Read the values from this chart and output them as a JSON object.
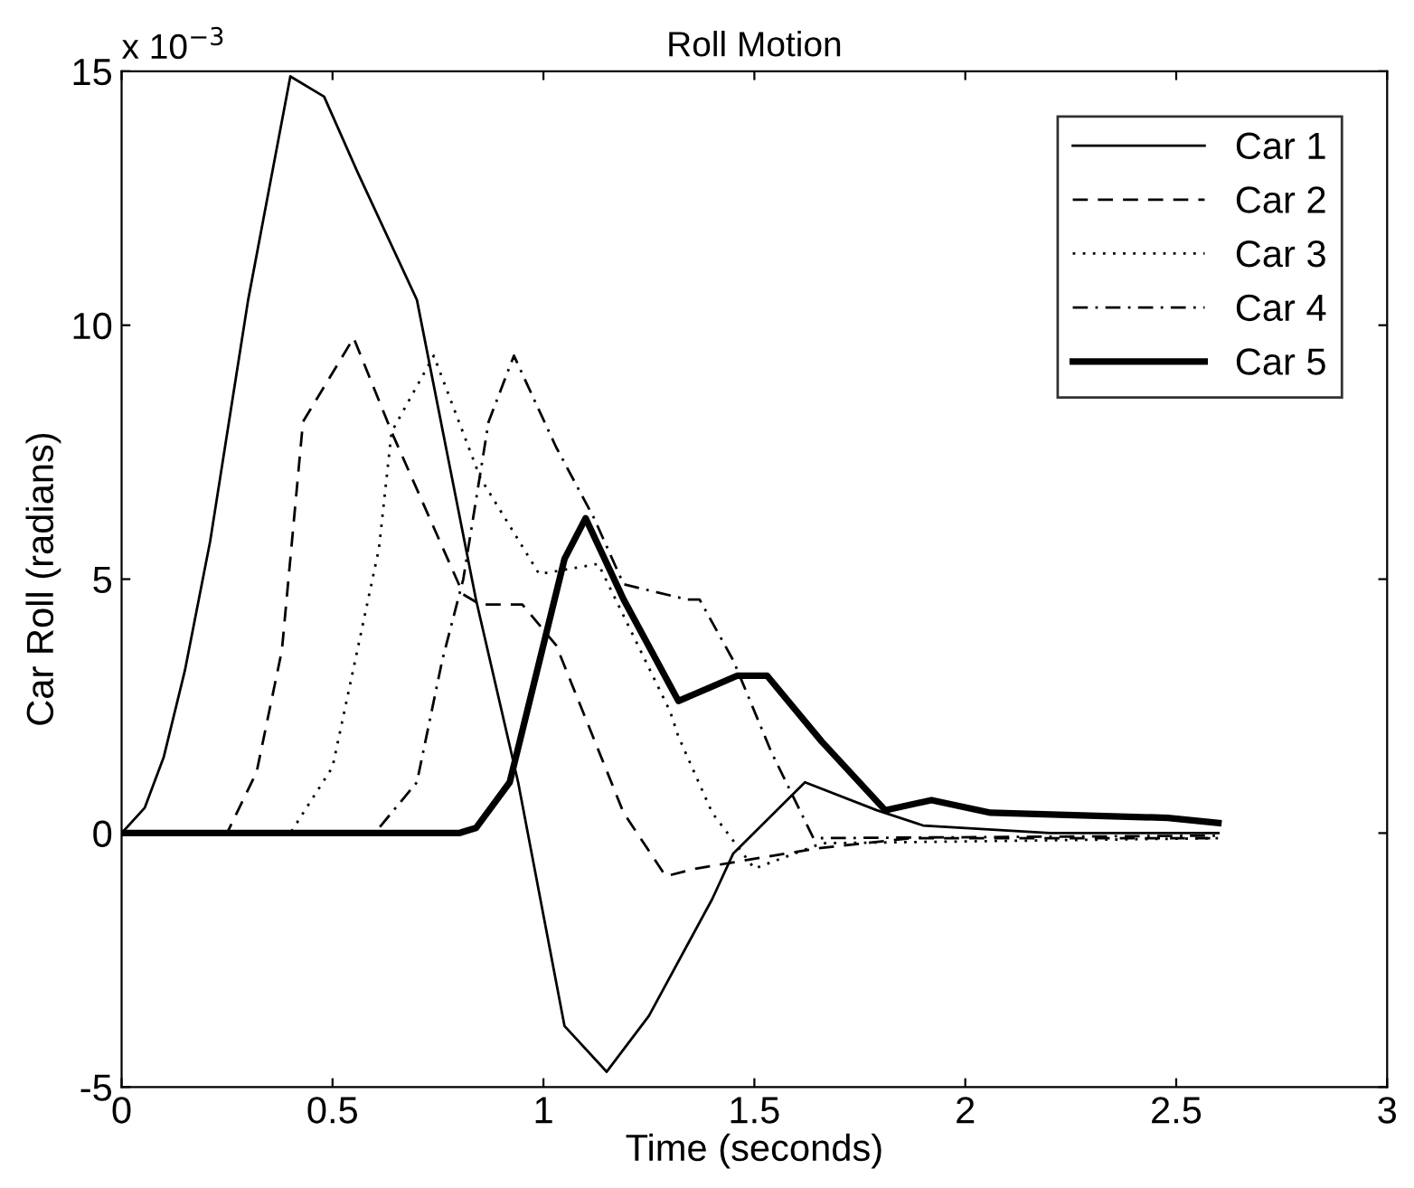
{
  "chart_data": {
    "type": "line",
    "title": "Roll Motion",
    "xlabel": "Time (seconds)",
    "ylabel": "Car Roll (radians)",
    "annotations": [
      "x 10$^{−3}$"
    ],
    "xlim": [
      0,
      3
    ],
    "xticks": [
      0,
      0.5,
      1,
      1.5,
      2,
      2.5,
      3
    ],
    "ylim": [
      -5,
      15
    ],
    "yticks": [
      -5,
      0,
      5,
      10,
      15
    ],
    "grid": false,
    "legend": "top right",
    "marker": "none",
    "series": [
      {
        "name": "Car 1",
        "color": "#000000",
        "line_style": "solid",
        "x": [
          0,
          0.055,
          0.1,
          0.15,
          0.21,
          0.3,
          0.4,
          0.48,
          0.56,
          0.7,
          0.84,
          0.94,
          1.05,
          1.15,
          1.25,
          1.4,
          1.45,
          1.62,
          1.79,
          1.9,
          2.2,
          2.6
        ],
        "values": [
          0,
          0.5,
          1.5,
          3.2,
          5.75,
          10.5,
          14.9,
          14.5,
          13.0,
          10.5,
          4.6,
          1.0,
          -3.8,
          -4.7,
          -3.6,
          -1.3,
          -0.4,
          1.0,
          0.45,
          0.15,
          0.0,
          0.0
        ]
      },
      {
        "name": "Car 2",
        "color": "#000000",
        "line_style": "dashed",
        "x": [
          0,
          0.25,
          0.32,
          0.38,
          0.43,
          0.55,
          0.64,
          0.81,
          0.85,
          0.95,
          1.03,
          1.19,
          1.29,
          1.36,
          1.65,
          1.87,
          2.6
        ],
        "values": [
          0,
          0,
          1.2,
          3.6,
          8.1,
          9.75,
          7.9,
          4.7,
          4.5,
          4.5,
          3.7,
          0.4,
          -0.85,
          -0.7,
          -0.3,
          -0.1,
          -0.1
        ]
      },
      {
        "name": "Car 3",
        "color": "#000000",
        "line_style": "dotted",
        "x": [
          0,
          0.4,
          0.5,
          0.61,
          0.64,
          0.74,
          0.85,
          0.99,
          1.13,
          1.3,
          1.32,
          1.4,
          1.5,
          1.66,
          2.6
        ],
        "values": [
          0,
          0,
          1.3,
          5.6,
          7.9,
          9.4,
          7.0,
          5.1,
          5.3,
          2.4,
          1.9,
          0.4,
          -0.7,
          -0.2,
          -0.1
        ]
      },
      {
        "name": "Car 4",
        "color": "#000000",
        "line_style": "dashdot",
        "x": [
          0,
          0.6,
          0.7,
          0.76,
          0.81,
          0.87,
          0.93,
          1.03,
          1.12,
          1.19,
          1.34,
          1.37,
          1.45,
          1.54,
          1.64,
          2.6
        ],
        "values": [
          0,
          0,
          1.0,
          3.4,
          5.0,
          8.1,
          9.4,
          7.6,
          6.2,
          4.9,
          4.6,
          4.6,
          3.4,
          1.6,
          -0.1,
          -0.05
        ]
      },
      {
        "name": "Car 5",
        "color": "#000000",
        "line_style": "solid",
        "x": [
          0,
          0.8,
          0.84,
          0.92,
          1.05,
          1.1,
          1.19,
          1.32,
          1.46,
          1.53,
          1.66,
          1.81,
          1.92,
          2.06,
          2.48,
          2.6
        ],
        "values": [
          0,
          0,
          0.1,
          1.0,
          5.4,
          6.2,
          4.6,
          2.6,
          3.1,
          3.1,
          1.8,
          0.45,
          0.65,
          0.4,
          0.3,
          0.2
        ]
      }
    ]
  }
}
